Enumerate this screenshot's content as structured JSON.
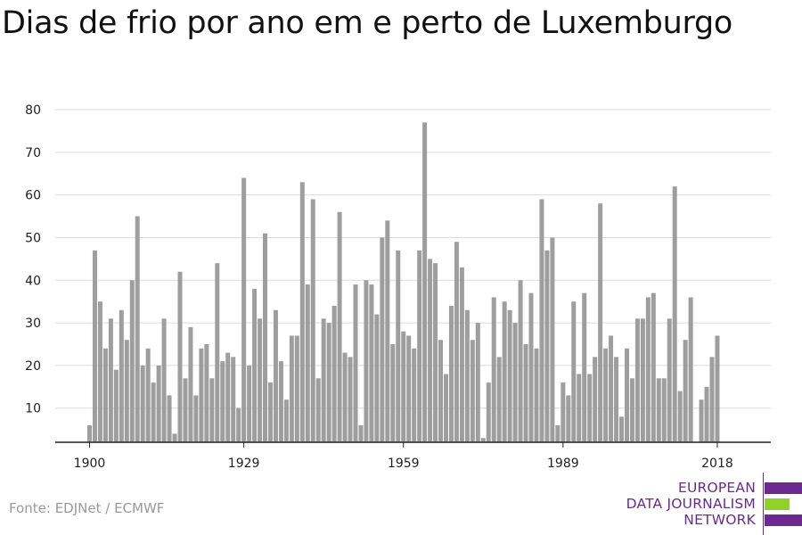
{
  "title": "Dias de frio por ano em e perto de Luxemburgo",
  "source": "Fonte: EDJNet / ECMWF",
  "logo": {
    "line1": "EUROPEAN",
    "line2": "DATA JOURNALISM",
    "line3": "NETWORK",
    "colors": {
      "purple": "#6b2a8f",
      "green": "#8fd22b"
    }
  },
  "colors": {
    "bar": "#9e9e9e",
    "grid": "#dcdcdc",
    "axis": "#222222",
    "text": "#222222"
  },
  "chart_data": {
    "type": "bar",
    "title": "Dias de frio por ano em e perto de Luxemburgo",
    "xlabel": "",
    "ylabel": "",
    "grid": true,
    "ylim": [
      2,
      80
    ],
    "yticks": [
      10,
      20,
      30,
      40,
      50,
      60,
      70,
      80
    ],
    "xticks": [
      1900,
      1929,
      1959,
      1989,
      2018
    ],
    "x": [
      1900,
      1901,
      1902,
      1903,
      1904,
      1905,
      1906,
      1907,
      1908,
      1909,
      1910,
      1911,
      1912,
      1913,
      1914,
      1915,
      1916,
      1917,
      1918,
      1919,
      1920,
      1921,
      1922,
      1923,
      1924,
      1925,
      1926,
      1927,
      1928,
      1929,
      1930,
      1931,
      1932,
      1933,
      1934,
      1935,
      1936,
      1937,
      1938,
      1939,
      1940,
      1941,
      1942,
      1943,
      1944,
      1945,
      1946,
      1947,
      1948,
      1949,
      1950,
      1951,
      1952,
      1953,
      1954,
      1955,
      1956,
      1957,
      1958,
      1959,
      1960,
      1961,
      1962,
      1963,
      1964,
      1965,
      1966,
      1967,
      1968,
      1969,
      1970,
      1971,
      1972,
      1973,
      1974,
      1975,
      1976,
      1977,
      1978,
      1979,
      1980,
      1981,
      1982,
      1983,
      1984,
      1985,
      1986,
      1987,
      1988,
      1989,
      1990,
      1991,
      1992,
      1993,
      1994,
      1995,
      1996,
      1997,
      1998,
      1999,
      2000,
      2001,
      2002,
      2003,
      2004,
      2005,
      2006,
      2007,
      2008,
      2009,
      2010,
      2011,
      2012,
      2013,
      2014,
      2015,
      2016,
      2017,
      2018
    ],
    "values": [
      6,
      47,
      35,
      24,
      31,
      19,
      33,
      26,
      40,
      55,
      20,
      24,
      16,
      20,
      31,
      13,
      4,
      42,
      17,
      29,
      13,
      24,
      25,
      17,
      44,
      21,
      23,
      22,
      10,
      64,
      20,
      38,
      31,
      51,
      16,
      33,
      21,
      12,
      27,
      27,
      63,
      39,
      59,
      17,
      31,
      30,
      34,
      56,
      23,
      22,
      39,
      6,
      40,
      39,
      32,
      50,
      54,
      25,
      47,
      28,
      27,
      24,
      47,
      77,
      45,
      44,
      26,
      18,
      34,
      49,
      43,
      33,
      26,
      30,
      3,
      16,
      36,
      22,
      35,
      33,
      30,
      40,
      25,
      37,
      24,
      59,
      47,
      50,
      6,
      16,
      13,
      35,
      18,
      37,
      18,
      22,
      58,
      24,
      27,
      22,
      8,
      24,
      17,
      31,
      31,
      36,
      37,
      17,
      17,
      31,
      62,
      14,
      26,
      36,
      null,
      12,
      15,
      22,
      27
    ]
  }
}
